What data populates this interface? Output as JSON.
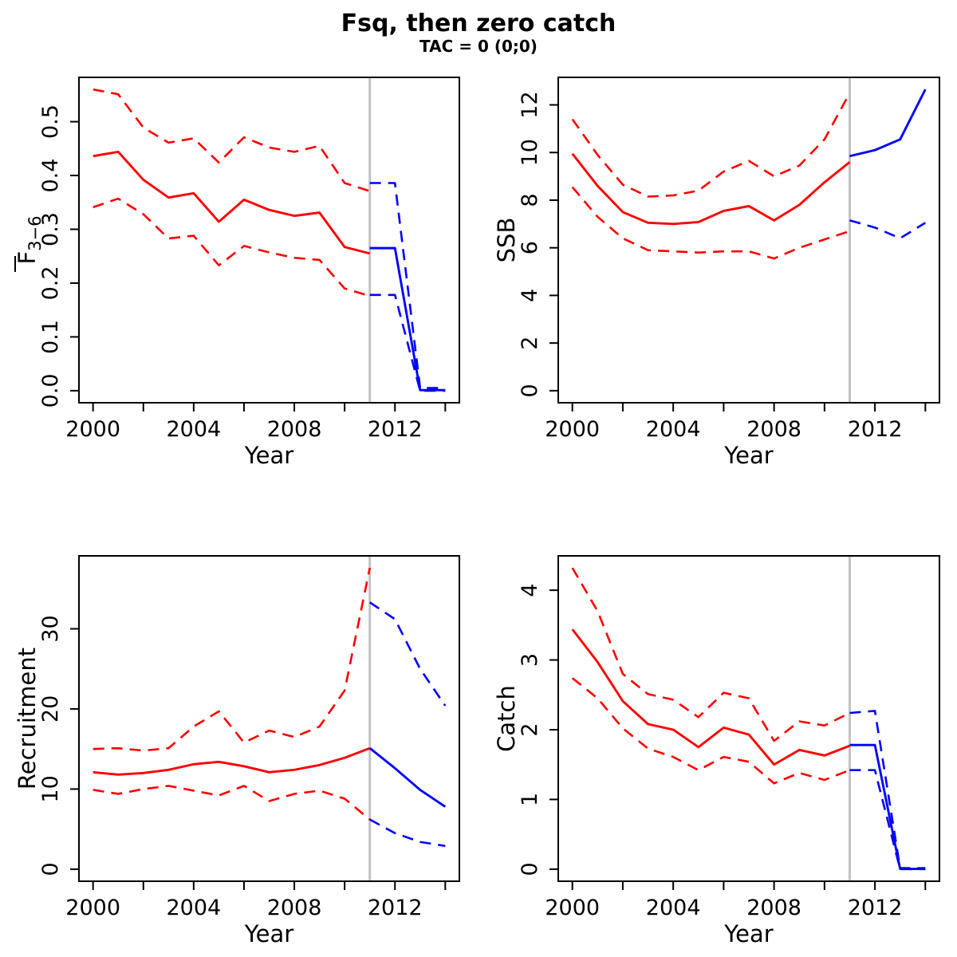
{
  "title": "Fsq, then zero catch",
  "subtitle": "TAC = 0 (0;0)",
  "xlabel": "Year",
  "divider_year": 2011,
  "colors": {
    "historic": "#FF0000",
    "forecast": "#0000FF",
    "divider": "#C2C2C2",
    "axis": "#000000"
  },
  "x_axis": {
    "minor_ticks": [
      2000,
      2002,
      2004,
      2006,
      2008,
      2010,
      2012,
      2014
    ],
    "major_ticks": [
      2000,
      2004,
      2008,
      2012
    ],
    "major_labels": [
      "2000",
      "2004",
      "2008",
      "2012"
    ]
  },
  "chart_data": [
    {
      "type": "line",
      "id": "fbar",
      "ylabel": "F̅3−6",
      "ylabel_parts": {
        "base": "F",
        "overbar": true,
        "sub": "3−6"
      },
      "xlabel": "Year",
      "xlim": [
        1999.44,
        2014.56
      ],
      "ylim": [
        -0.0224,
        0.5824
      ],
      "yticks": [
        0.0,
        0.1,
        0.2,
        0.3,
        0.4,
        0.5
      ],
      "ytick_labels": [
        "0.0",
        "0.1",
        "0.2",
        "0.3",
        "0.4",
        "0.5"
      ],
      "grid": false,
      "legend": "none",
      "series": [
        {
          "name": "ci-upper-historic",
          "color": "red",
          "dashed": true,
          "x": [
            2000,
            2001,
            2002,
            2003,
            2004,
            2005,
            2006,
            2007,
            2008,
            2009,
            2010,
            2011
          ],
          "y": [
            0.56,
            0.551,
            0.489,
            0.461,
            0.469,
            0.424,
            0.471,
            0.452,
            0.444,
            0.455,
            0.386,
            0.371
          ]
        },
        {
          "name": "median-historic",
          "color": "red",
          "dashed": false,
          "x": [
            2000,
            2001,
            2002,
            2003,
            2004,
            2005,
            2006,
            2007,
            2008,
            2009,
            2010,
            2011
          ],
          "y": [
            0.436,
            0.444,
            0.392,
            0.359,
            0.367,
            0.314,
            0.355,
            0.336,
            0.325,
            0.331,
            0.267,
            0.255
          ]
        },
        {
          "name": "ci-lower-historic",
          "color": "red",
          "dashed": true,
          "x": [
            2000,
            2001,
            2002,
            2003,
            2004,
            2005,
            2006,
            2007,
            2008,
            2009,
            2010,
            2011
          ],
          "y": [
            0.341,
            0.357,
            0.328,
            0.283,
            0.288,
            0.233,
            0.269,
            0.257,
            0.247,
            0.243,
            0.19,
            0.176
          ]
        },
        {
          "name": "ci-upper-forecast",
          "color": "blue",
          "dashed": true,
          "x": [
            2011,
            2012,
            2013,
            2014
          ],
          "y": [
            0.386,
            0.386,
            0.005,
            0.005
          ]
        },
        {
          "name": "median-forecast",
          "color": "blue",
          "dashed": false,
          "x": [
            2011,
            2012,
            2013,
            2014
          ],
          "y": [
            0.265,
            0.265,
            0.001,
            0.001
          ]
        },
        {
          "name": "ci-lower-forecast",
          "color": "blue",
          "dashed": true,
          "x": [
            2011,
            2012,
            2013,
            2014
          ],
          "y": [
            0.178,
            0.178,
            0.0,
            0.0
          ]
        }
      ]
    },
    {
      "type": "line",
      "id": "ssb",
      "ylabel": "SSB",
      "xlabel": "Year",
      "xlim": [
        1999.44,
        2014.56
      ],
      "ylim": [
        -0.506,
        13.156
      ],
      "yticks": [
        0,
        2,
        4,
        6,
        8,
        10,
        12
      ],
      "ytick_labels": [
        "0",
        "2",
        "4",
        "6",
        "8",
        "10",
        "12"
      ],
      "grid": false,
      "legend": "none",
      "series": [
        {
          "name": "ci-upper-historic",
          "color": "red",
          "dashed": true,
          "x": [
            2000,
            2001,
            2002,
            2003,
            2004,
            2005,
            2006,
            2007,
            2008,
            2009,
            2010,
            2011
          ],
          "y": [
            11.4,
            9.9,
            8.65,
            8.15,
            8.2,
            8.4,
            9.2,
            9.65,
            9.0,
            9.45,
            10.55,
            12.5
          ]
        },
        {
          "name": "median-historic",
          "color": "red",
          "dashed": false,
          "x": [
            2000,
            2001,
            2002,
            2003,
            2004,
            2005,
            2006,
            2007,
            2008,
            2009,
            2010,
            2011
          ],
          "y": [
            9.95,
            8.6,
            7.5,
            7.05,
            7.0,
            7.08,
            7.55,
            7.75,
            7.15,
            7.8,
            8.75,
            9.6
          ]
        },
        {
          "name": "ci-lower-historic",
          "color": "red",
          "dashed": true,
          "x": [
            2000,
            2001,
            2002,
            2003,
            2004,
            2005,
            2006,
            2007,
            2008,
            2009,
            2010,
            2011
          ],
          "y": [
            8.55,
            7.3,
            6.4,
            5.9,
            5.85,
            5.8,
            5.85,
            5.85,
            5.55,
            6.0,
            6.35,
            6.7
          ]
        },
        {
          "name": "median-forecast",
          "color": "blue",
          "dashed": false,
          "x": [
            2011,
            2012,
            2013,
            2014
          ],
          "y": [
            9.85,
            10.1,
            10.55,
            12.65
          ]
        },
        {
          "name": "ci-lower-forecast",
          "color": "blue",
          "dashed": true,
          "x": [
            2011,
            2012,
            2013,
            2014
          ],
          "y": [
            7.15,
            6.85,
            6.4,
            7.05
          ]
        }
      ]
    },
    {
      "type": "line",
      "id": "recruitment",
      "ylabel": "Recruitment",
      "xlabel": "Year",
      "xlim": [
        1999.44,
        2014.56
      ],
      "ylim": [
        -1.504,
        39.104
      ],
      "yticks": [
        0,
        10,
        20,
        30
      ],
      "ytick_labels": [
        "0",
        "10",
        "20",
        "30"
      ],
      "grid": false,
      "legend": "none",
      "series": [
        {
          "name": "ci-upper-historic",
          "color": "red",
          "dashed": true,
          "x": [
            2000,
            2001,
            2002,
            2003,
            2004,
            2005,
            2006,
            2007,
            2008,
            2009,
            2010,
            2011
          ],
          "y": [
            15.0,
            15.1,
            14.8,
            15.1,
            17.8,
            19.7,
            15.8,
            17.3,
            16.5,
            17.8,
            22.3,
            37.6
          ]
        },
        {
          "name": "median-historic",
          "color": "red",
          "dashed": false,
          "x": [
            2000,
            2001,
            2002,
            2003,
            2004,
            2005,
            2006,
            2007,
            2008,
            2009,
            2010,
            2011
          ],
          "y": [
            12.1,
            11.8,
            12.0,
            12.4,
            13.1,
            13.4,
            12.85,
            12.1,
            12.4,
            13.0,
            13.9,
            15.1
          ]
        },
        {
          "name": "ci-lower-historic",
          "color": "red",
          "dashed": true,
          "x": [
            2000,
            2001,
            2002,
            2003,
            2004,
            2005,
            2006,
            2007,
            2008,
            2009,
            2010,
            2011
          ],
          "y": [
            9.9,
            9.4,
            10.0,
            10.4,
            9.8,
            9.2,
            10.4,
            8.5,
            9.4,
            9.8,
            8.8,
            6.2
          ]
        },
        {
          "name": "ci-upper-forecast",
          "color": "blue",
          "dashed": true,
          "x": [
            2011,
            2012,
            2013,
            2014
          ],
          "y": [
            33.3,
            31.2,
            25.0,
            20.4
          ]
        },
        {
          "name": "median-forecast",
          "color": "blue",
          "dashed": false,
          "x": [
            2011,
            2012,
            2013,
            2014
          ],
          "y": [
            15.1,
            12.6,
            9.9,
            7.8
          ]
        },
        {
          "name": "ci-lower-forecast",
          "color": "blue",
          "dashed": true,
          "x": [
            2011,
            2012,
            2013,
            2014
          ],
          "y": [
            6.2,
            4.5,
            3.4,
            2.9
          ]
        }
      ]
    },
    {
      "type": "line",
      "id": "catch",
      "ylabel": "Catch",
      "xlabel": "Year",
      "xlim": [
        1999.44,
        2014.56
      ],
      "ylim": [
        -0.173,
        4.493
      ],
      "yticks": [
        0,
        1,
        2,
        3,
        4
      ],
      "ytick_labels": [
        "0",
        "1",
        "2",
        "3",
        "4"
      ],
      "grid": false,
      "legend": "none",
      "series": [
        {
          "name": "ci-upper-historic",
          "color": "red",
          "dashed": true,
          "x": [
            2000,
            2001,
            2002,
            2003,
            2004,
            2005,
            2006,
            2007,
            2008,
            2009,
            2010,
            2011
          ],
          "y": [
            4.32,
            3.7,
            2.8,
            2.51,
            2.43,
            2.18,
            2.53,
            2.45,
            1.84,
            2.12,
            2.06,
            2.24
          ]
        },
        {
          "name": "median-historic",
          "color": "red",
          "dashed": false,
          "x": [
            2000,
            2001,
            2002,
            2003,
            2004,
            2005,
            2006,
            2007,
            2008,
            2009,
            2010,
            2011
          ],
          "y": [
            3.44,
            2.97,
            2.41,
            2.08,
            2.0,
            1.75,
            2.03,
            1.93,
            1.5,
            1.71,
            1.63,
            1.77
          ]
        },
        {
          "name": "ci-lower-historic",
          "color": "red",
          "dashed": true,
          "x": [
            2000,
            2001,
            2002,
            2003,
            2004,
            2005,
            2006,
            2007,
            2008,
            2009,
            2010,
            2011
          ],
          "y": [
            2.74,
            2.45,
            2.02,
            1.73,
            1.61,
            1.42,
            1.61,
            1.54,
            1.23,
            1.38,
            1.28,
            1.42
          ]
        },
        {
          "name": "ci-upper-forecast",
          "color": "blue",
          "dashed": true,
          "x": [
            2011,
            2012,
            2013,
            2014
          ],
          "y": [
            2.24,
            2.27,
            0.015,
            0.015
          ]
        },
        {
          "name": "median-forecast",
          "color": "blue",
          "dashed": false,
          "x": [
            2011,
            2012,
            2013,
            2014
          ],
          "y": [
            1.78,
            1.78,
            0.004,
            0.004
          ]
        },
        {
          "name": "ci-lower-forecast",
          "color": "blue",
          "dashed": true,
          "x": [
            2011,
            2012,
            2013,
            2014
          ],
          "y": [
            1.42,
            1.42,
            0.0,
            0.0
          ]
        }
      ]
    }
  ]
}
